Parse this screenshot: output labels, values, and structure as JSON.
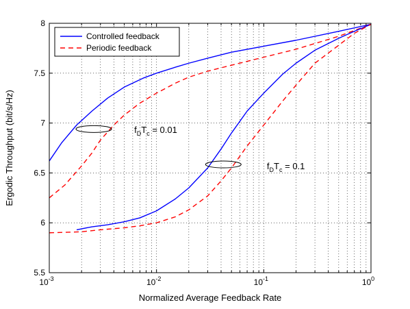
{
  "chart_data": {
    "type": "line",
    "xlabel": "Normalized Average Feedback Rate",
    "ylabel": "Ergodic Throughput (bit/s/Hz)",
    "xscale": "log",
    "xlim": [
      0.001,
      1
    ],
    "ylim": [
      5.5,
      8
    ],
    "grid": "dotted",
    "legend_position": "top-left",
    "x_ticks": [
      {
        "base": "10",
        "exp": "-3"
      },
      {
        "base": "10",
        "exp": "-2"
      },
      {
        "base": "10",
        "exp": "-1"
      },
      {
        "base": "10",
        "exp": "0"
      }
    ],
    "y_ticks": [
      "5.5",
      "6",
      "6.5",
      "7",
      "7.5",
      "8"
    ],
    "legend": [
      {
        "label": "Controlled feedback",
        "color": "#0000ff",
        "dash": "solid"
      },
      {
        "label": "Periodic feedback",
        "color": "#ff0000",
        "dash": "dashed"
      }
    ],
    "series": [
      {
        "group": 0,
        "style": 0,
        "x": [
          0.001,
          0.0013,
          0.0018,
          0.0025,
          0.0035,
          0.005,
          0.0075,
          0.01,
          0.015,
          0.02,
          0.03,
          0.05,
          0.1,
          0.2,
          0.5,
          1
        ],
        "y": [
          6.62,
          6.8,
          6.98,
          7.12,
          7.25,
          7.36,
          7.45,
          7.5,
          7.56,
          7.6,
          7.65,
          7.71,
          7.77,
          7.83,
          7.92,
          7.99
        ]
      },
      {
        "group": 0,
        "style": 1,
        "x": [
          0.001,
          0.0014,
          0.002,
          0.0025,
          0.003,
          0.004,
          0.005,
          0.007,
          0.01,
          0.015,
          0.02,
          0.03,
          0.05,
          0.1,
          0.2,
          0.5,
          1
        ],
        "y": [
          6.25,
          6.38,
          6.57,
          6.7,
          6.83,
          6.98,
          7.08,
          7.2,
          7.3,
          7.4,
          7.46,
          7.52,
          7.58,
          7.66,
          7.74,
          7.87,
          7.99
        ]
      },
      {
        "group": 1,
        "style": 0,
        "x": [
          0.0018,
          0.0025,
          0.0035,
          0.005,
          0.007,
          0.01,
          0.015,
          0.02,
          0.03,
          0.04,
          0.05,
          0.07,
          0.1,
          0.15,
          0.2,
          0.3,
          0.5,
          0.7,
          1
        ],
        "y": [
          5.93,
          5.96,
          5.98,
          6.01,
          6.05,
          6.12,
          6.24,
          6.35,
          6.55,
          6.74,
          6.9,
          7.12,
          7.3,
          7.49,
          7.6,
          7.73,
          7.85,
          7.92,
          7.99
        ]
      },
      {
        "group": 1,
        "style": 1,
        "x": [
          0.001,
          0.002,
          0.003,
          0.005,
          0.007,
          0.01,
          0.015,
          0.02,
          0.03,
          0.04,
          0.05,
          0.07,
          0.1,
          0.15,
          0.2,
          0.3,
          0.5,
          0.7,
          1
        ],
        "y": [
          5.9,
          5.91,
          5.93,
          5.95,
          5.97,
          6.0,
          6.06,
          6.13,
          6.27,
          6.42,
          6.55,
          6.77,
          6.98,
          7.22,
          7.38,
          7.6,
          7.78,
          7.9,
          7.99
        ]
      }
    ],
    "annotations": [
      {
        "f": "f",
        "fsub": "D",
        "t": "T",
        "tsub": "c",
        "value": " = 0.01",
        "group": 0,
        "ellipse_x": 0.0026,
        "ellipse_y": 6.94,
        "text_x": 0.0062,
        "text_y": 6.93
      },
      {
        "f": "f",
        "fsub": "D",
        "t": "T",
        "tsub": "c",
        "value": " = 0.1",
        "group": 1,
        "ellipse_x": 0.042,
        "ellipse_y": 6.585,
        "text_x": 0.107,
        "text_y": 6.565
      }
    ]
  }
}
